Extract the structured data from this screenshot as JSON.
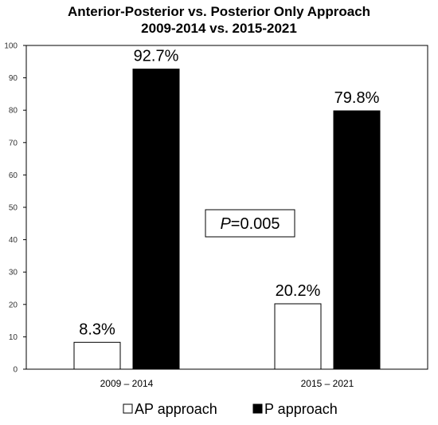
{
  "chart_data": {
    "type": "bar",
    "title": "Anterior-Posterior  vs. Posterior Only Approach",
    "subtitle": "2009-2014 vs. 2015-2021",
    "xlabel": "",
    "ylabel": "",
    "categories": [
      "2009 – 2014",
      "2015 – 2021"
    ],
    "series": [
      {
        "name": "AP approach",
        "values": [
          8.3,
          20.2
        ],
        "labels": [
          "8.3%",
          "20.2%"
        ],
        "color": "#ffffff"
      },
      {
        "name": "P approach",
        "values": [
          92.7,
          79.8
        ],
        "labels": [
          "92.7%",
          "79.8%"
        ],
        "color": "#000000"
      }
    ],
    "ylim": [
      0,
      100
    ],
    "yticks": [
      0,
      10,
      20,
      30,
      40,
      50,
      60,
      70,
      80,
      90,
      100
    ],
    "grid": false,
    "legend_position": "bottom",
    "annotation": {
      "italic": "P",
      "rest": "=0.005"
    }
  }
}
